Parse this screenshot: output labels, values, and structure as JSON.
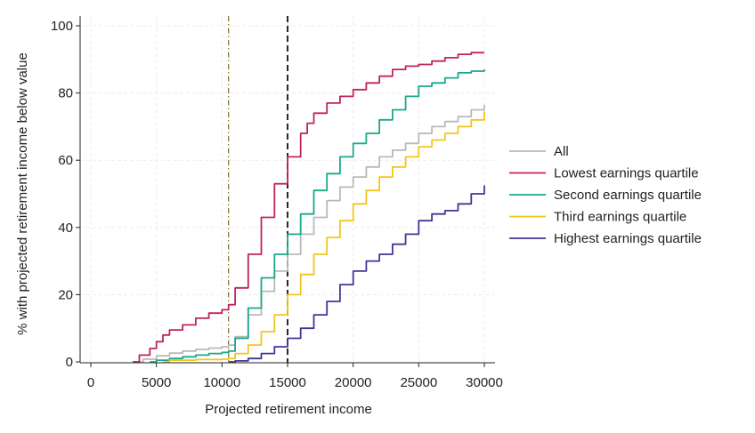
{
  "chart_data": {
    "type": "line",
    "title": "",
    "xlabel": "Projected retirement income",
    "ylabel": "% with projected retirement income below value",
    "xlim": [
      0,
      30000
    ],
    "ylim": [
      0,
      100
    ],
    "xticks": [
      0,
      5000,
      10000,
      15000,
      20000,
      25000,
      30000
    ],
    "yticks": [
      0,
      20,
      40,
      60,
      80,
      100
    ],
    "grid": true,
    "legend_position": "right",
    "reference_lines": [
      {
        "x": 10500,
        "style": "dash-dot",
        "color": "#8a7a3a"
      },
      {
        "x": 15000,
        "style": "dashed",
        "color": "#111111"
      }
    ],
    "series": [
      {
        "name": "All",
        "color": "#b9b9b9",
        "points": [
          [
            3200,
            0
          ],
          [
            4000,
            0.8
          ],
          [
            5000,
            1.8
          ],
          [
            6000,
            2.6
          ],
          [
            7000,
            3.2
          ],
          [
            8000,
            3.7
          ],
          [
            9000,
            4.1
          ],
          [
            10000,
            4.5
          ],
          [
            10500,
            5
          ],
          [
            11000,
            7.5
          ],
          [
            12000,
            14
          ],
          [
            13000,
            21
          ],
          [
            14000,
            27
          ],
          [
            15000,
            32
          ],
          [
            16000,
            38
          ],
          [
            17000,
            43
          ],
          [
            18000,
            48
          ],
          [
            19000,
            52
          ],
          [
            20000,
            55
          ],
          [
            21000,
            58
          ],
          [
            22000,
            61
          ],
          [
            23000,
            63
          ],
          [
            24000,
            65
          ],
          [
            25000,
            68
          ],
          [
            26000,
            70
          ],
          [
            27000,
            71.5
          ],
          [
            28000,
            73
          ],
          [
            29000,
            75
          ],
          [
            30000,
            76.5
          ]
        ]
      },
      {
        "name": "Lowest earnings quartile",
        "color": "#c0245c",
        "points": [
          [
            3200,
            0
          ],
          [
            3700,
            2
          ],
          [
            4500,
            4
          ],
          [
            5000,
            6
          ],
          [
            5500,
            8
          ],
          [
            6000,
            9.5
          ],
          [
            7000,
            11
          ],
          [
            8000,
            13
          ],
          [
            9000,
            14.5
          ],
          [
            10000,
            15.5
          ],
          [
            10500,
            17
          ],
          [
            11000,
            22
          ],
          [
            12000,
            32
          ],
          [
            13000,
            43
          ],
          [
            14000,
            53
          ],
          [
            15000,
            61
          ],
          [
            16000,
            68
          ],
          [
            16500,
            71
          ],
          [
            17000,
            74
          ],
          [
            18000,
            77
          ],
          [
            19000,
            79
          ],
          [
            20000,
            81
          ],
          [
            21000,
            83
          ],
          [
            22000,
            85
          ],
          [
            23000,
            87
          ],
          [
            24000,
            88
          ],
          [
            25000,
            88.5
          ],
          [
            26000,
            89.5
          ],
          [
            27000,
            90.5
          ],
          [
            28000,
            91.5
          ],
          [
            29000,
            92
          ],
          [
            30000,
            92
          ]
        ]
      },
      {
        "name": "Second earnings quartile",
        "color": "#1aa88a",
        "points": [
          [
            4500,
            0
          ],
          [
            5000,
            0.5
          ],
          [
            6000,
            1
          ],
          [
            7000,
            1.5
          ],
          [
            8000,
            2
          ],
          [
            9000,
            2.5
          ],
          [
            10000,
            2.8
          ],
          [
            10500,
            3.2
          ],
          [
            11000,
            7
          ],
          [
            12000,
            16
          ],
          [
            13000,
            25
          ],
          [
            14000,
            32
          ],
          [
            15000,
            38
          ],
          [
            16000,
            44
          ],
          [
            17000,
            51
          ],
          [
            18000,
            56
          ],
          [
            19000,
            61
          ],
          [
            20000,
            65
          ],
          [
            21000,
            68
          ],
          [
            22000,
            72
          ],
          [
            23000,
            75
          ],
          [
            24000,
            79
          ],
          [
            25000,
            82
          ],
          [
            26000,
            83
          ],
          [
            27000,
            84.5
          ],
          [
            28000,
            86
          ],
          [
            29000,
            86.5
          ],
          [
            30000,
            87
          ]
        ]
      },
      {
        "name": "Third earnings quartile",
        "color": "#f2c618",
        "points": [
          [
            5500,
            0
          ],
          [
            6000,
            0.5
          ],
          [
            8000,
            0.7
          ],
          [
            10000,
            0.8
          ],
          [
            10500,
            1
          ],
          [
            11000,
            2.5
          ],
          [
            12000,
            5
          ],
          [
            13000,
            9
          ],
          [
            14000,
            14
          ],
          [
            15000,
            20
          ],
          [
            16000,
            26
          ],
          [
            17000,
            32
          ],
          [
            18000,
            37
          ],
          [
            19000,
            42
          ],
          [
            20000,
            47
          ],
          [
            21000,
            51
          ],
          [
            22000,
            55
          ],
          [
            23000,
            58
          ],
          [
            24000,
            61
          ],
          [
            25000,
            64
          ],
          [
            26000,
            66
          ],
          [
            27000,
            68
          ],
          [
            28000,
            70
          ],
          [
            29000,
            72
          ],
          [
            30000,
            74.5
          ]
        ]
      },
      {
        "name": "Highest earnings quartile",
        "color": "#3f3797",
        "points": [
          [
            10500,
            0
          ],
          [
            11000,
            0.3
          ],
          [
            12000,
            1
          ],
          [
            13000,
            2.5
          ],
          [
            14000,
            4.5
          ],
          [
            15000,
            7
          ],
          [
            16000,
            10
          ],
          [
            17000,
            14
          ],
          [
            18000,
            18
          ],
          [
            19000,
            23
          ],
          [
            20000,
            27
          ],
          [
            21000,
            30
          ],
          [
            22000,
            32
          ],
          [
            23000,
            35
          ],
          [
            24000,
            38
          ],
          [
            25000,
            42
          ],
          [
            26000,
            44
          ],
          [
            27000,
            45
          ],
          [
            28000,
            47
          ],
          [
            29000,
            50
          ],
          [
            30000,
            52.5
          ]
        ]
      }
    ]
  }
}
